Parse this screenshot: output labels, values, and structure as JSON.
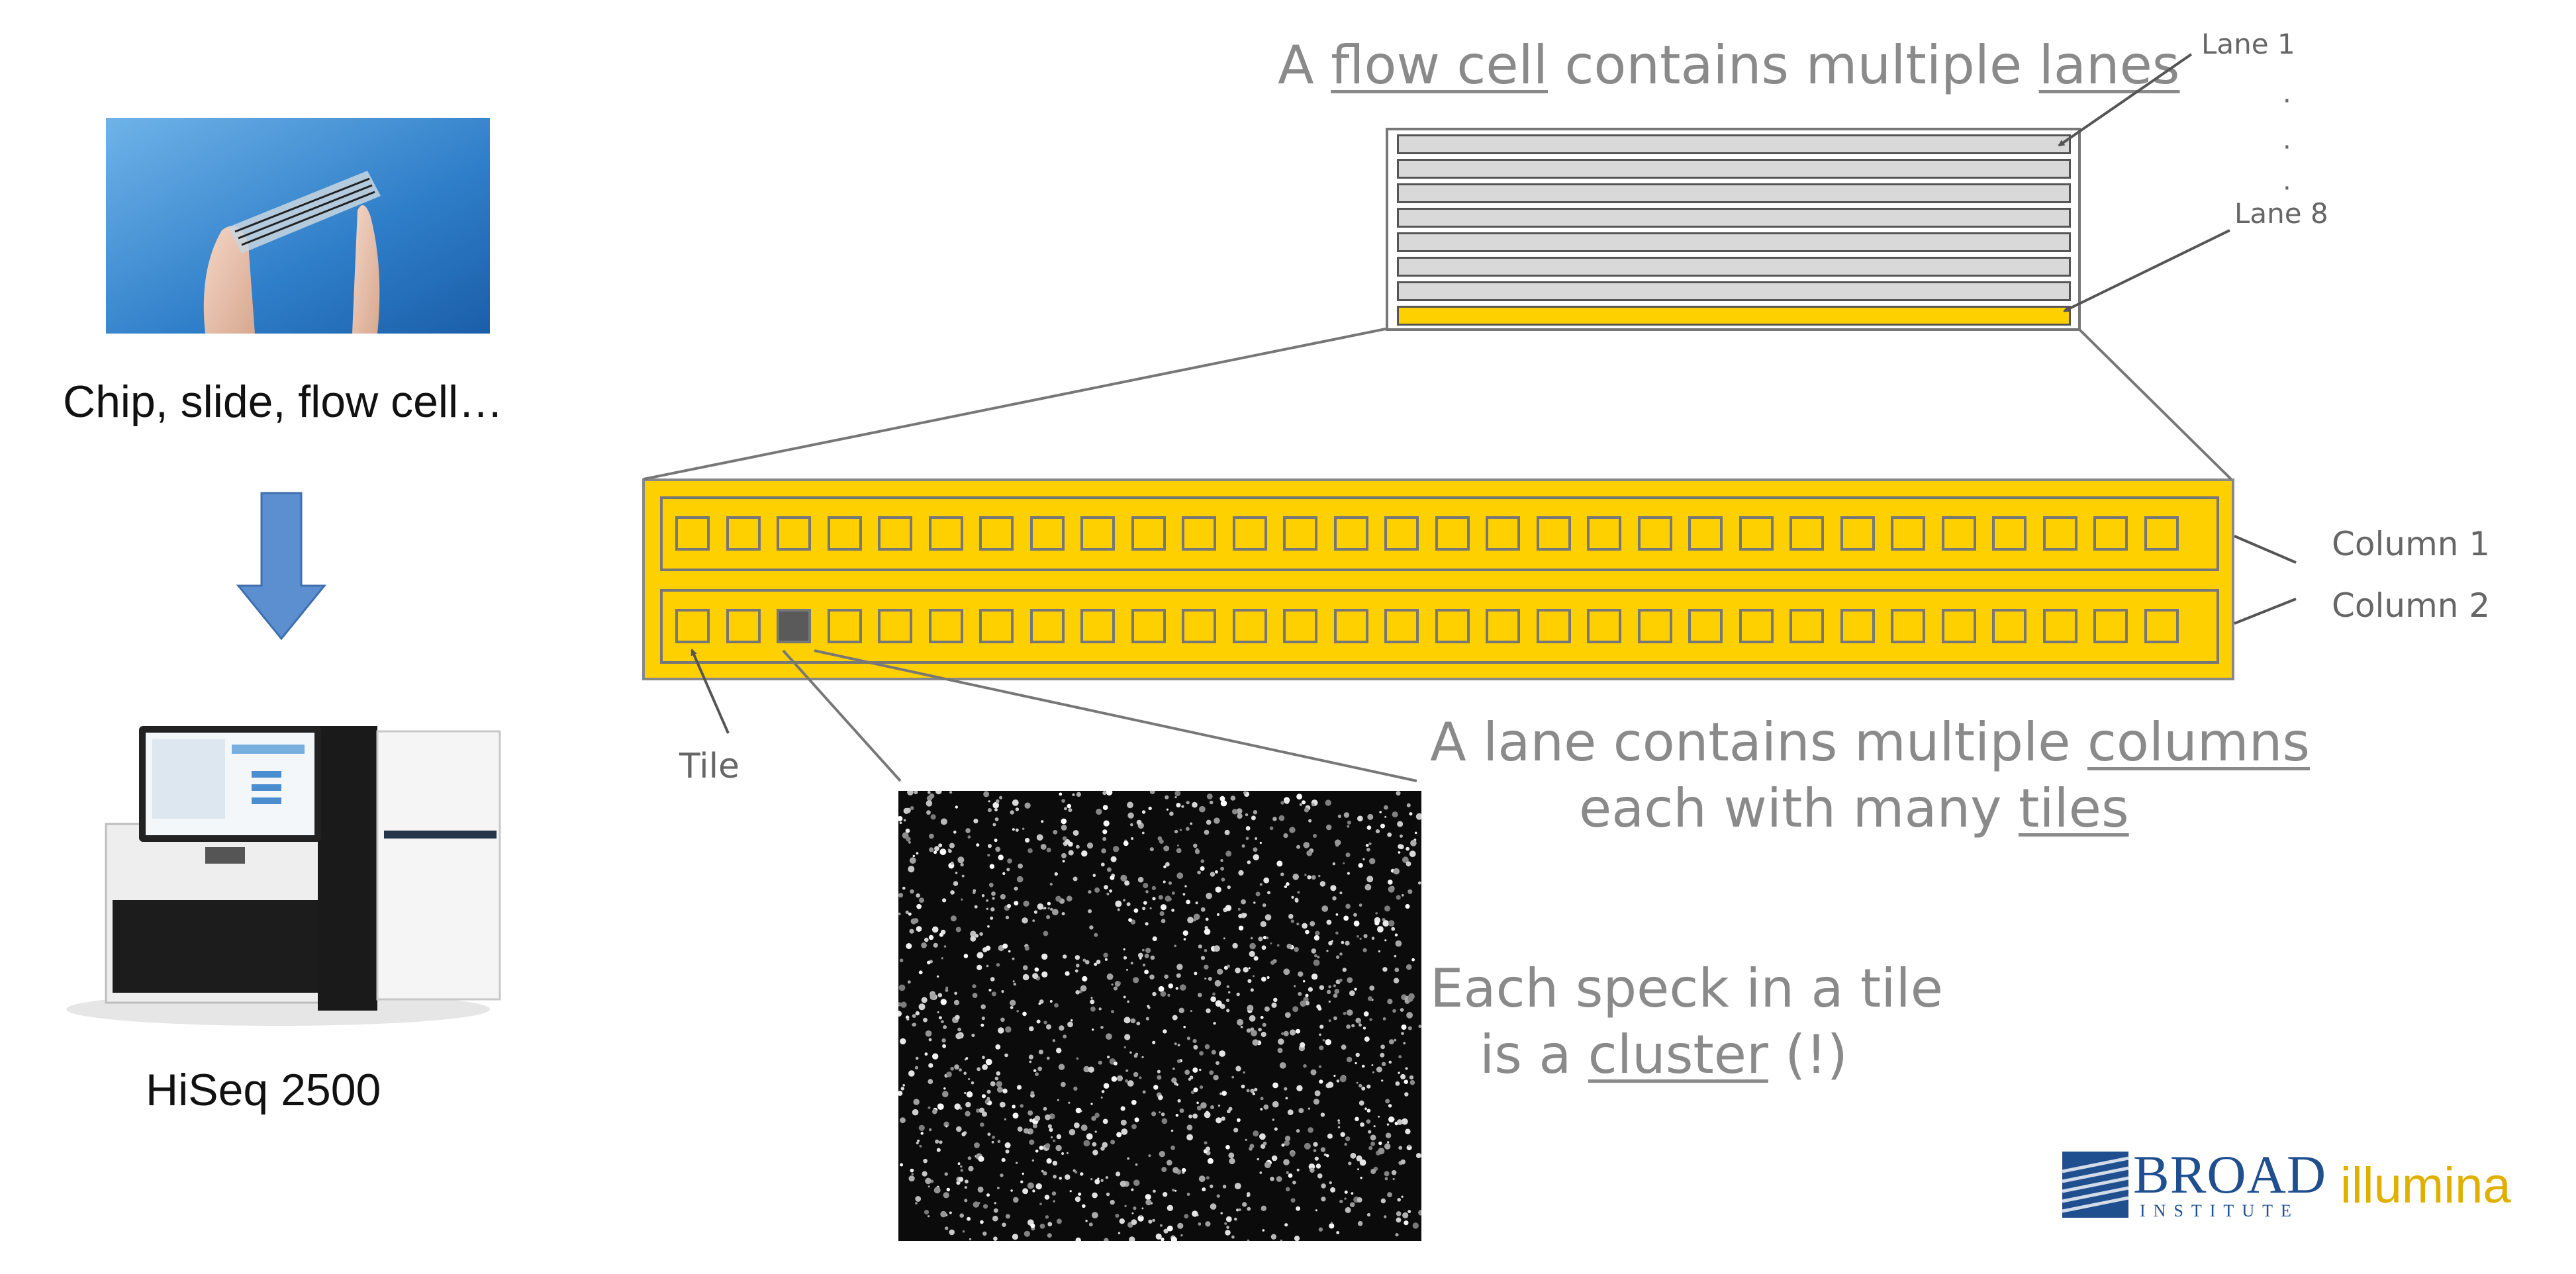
{
  "left_panel": {
    "chip_caption": "Chip, slide, flow cell…",
    "instrument_caption": "HiSeq 2500"
  },
  "flow_cell": {
    "heading_prefix": "A ",
    "heading_term1": "flow cell",
    "heading_mid": " contains multiple ",
    "heading_term2": "lanes",
    "lane_count": 8,
    "highlighted_lane": 8,
    "lane_first_label": "Lane 1",
    "lane_last_label": "Lane 8",
    "ellipsis": "·"
  },
  "lane_detail": {
    "columns": [
      "Column 1",
      "Column 2"
    ],
    "tiles_per_column": 30,
    "highlighted_tile": {
      "column": 2,
      "tile": 3
    },
    "tile_label": "Tile",
    "caption_line1_prefix": "A lane contains multiple ",
    "caption_line1_term": "columns",
    "caption_line2_prefix": "each with many ",
    "caption_line2_term": "tiles"
  },
  "cluster": {
    "caption_line1": "Each speck in a tile",
    "caption_line2_prefix": "is a ",
    "caption_line2_term": "cluster",
    "caption_line2_suffix": " (!)"
  },
  "logos": {
    "broad_main": "BROAD",
    "broad_sub": "INSTITUTE",
    "illumina": "illumina"
  },
  "colors": {
    "lane_highlight": "#ffd000",
    "lane_gray": "#d9d9d9",
    "text_gray": "#8a8a8a",
    "broad_blue": "#1f4f8f",
    "illumina_gold": "#e0b000",
    "arrow_blue": "#5b8fd0"
  }
}
